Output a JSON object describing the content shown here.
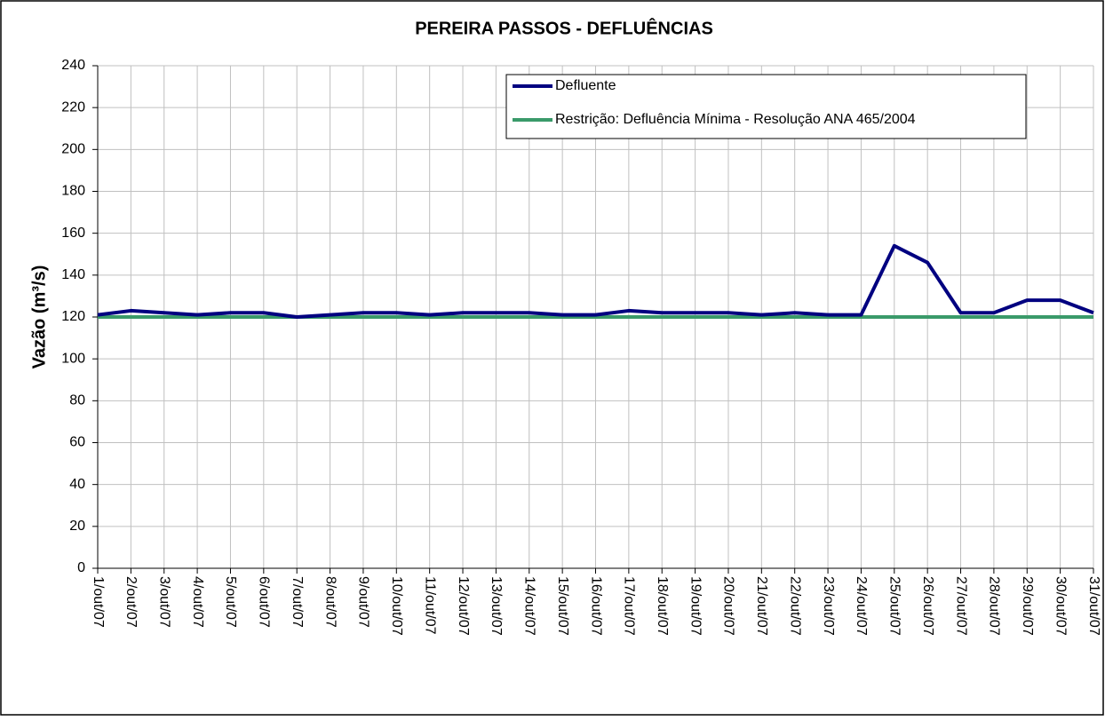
{
  "chart_data": {
    "type": "line",
    "title": "PEREIRA PASSOS - DEFLUÊNCIAS",
    "y_label": "Vazão (m³/s)",
    "categories": [
      "1/out/07",
      "2/out/07",
      "3/out/07",
      "4/out/07",
      "5/out/07",
      "6/out/07",
      "7/out/07",
      "8/out/07",
      "9/out/07",
      "10/out/07",
      "11/out/07",
      "12/out/07",
      "13/out/07",
      "14/out/07",
      "15/out/07",
      "16/out/07",
      "17/out/07",
      "18/out/07",
      "19/out/07",
      "20/out/07",
      "21/out/07",
      "22/out/07",
      "23/out/07",
      "24/out/07",
      "25/out/07",
      "26/out/07",
      "27/out/07",
      "28/out/07",
      "29/out/07",
      "30/out/07",
      "31/out/07"
    ],
    "series": [
      {
        "name": "Defluente",
        "color": "#000080",
        "values": [
          121,
          123,
          122,
          121,
          122,
          122,
          120,
          121,
          122,
          122,
          121,
          122,
          122,
          122,
          121,
          121,
          123,
          122,
          122,
          122,
          121,
          122,
          121,
          121,
          154,
          146,
          122,
          122,
          128,
          128,
          122
        ]
      },
      {
        "name": "Restrição: Defluência Mínima - Resolução ANA 465/2004",
        "color": "#3a9a6a",
        "values": [
          120,
          120,
          120,
          120,
          120,
          120,
          120,
          120,
          120,
          120,
          120,
          120,
          120,
          120,
          120,
          120,
          120,
          120,
          120,
          120,
          120,
          120,
          120,
          120,
          120,
          120,
          120,
          120,
          120,
          120,
          120
        ]
      }
    ],
    "ylim": [
      0,
      240
    ],
    "yticks": [
      0,
      20,
      40,
      60,
      80,
      100,
      120,
      140,
      160,
      180,
      200,
      220,
      240
    ],
    "grid": true,
    "legend": "upper right"
  }
}
